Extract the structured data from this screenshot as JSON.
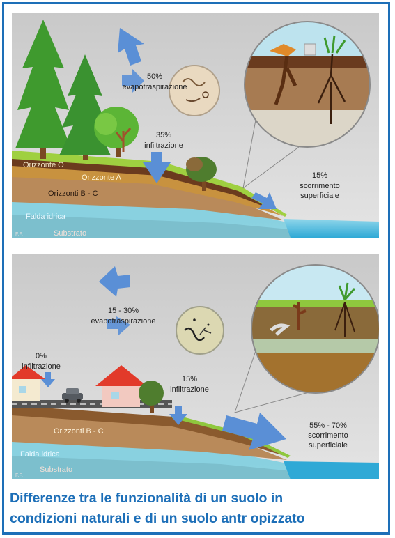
{
  "natural_panel": {
    "evapotranspiration_pct": "50%",
    "evapotranspiration_label": "evapotraspirazione",
    "infiltration_pct": "35%",
    "infiltration_label": "infiltrazione",
    "runoff_pct": "15%",
    "runoff_label_1": "scorrimento",
    "runoff_label_2": "superficiale",
    "horizon_o": "Orizzonte O",
    "horizon_a": "Orizzonte A",
    "horizons_bc": "Orizzonti B - C",
    "water_table": "Falda idrica",
    "substrate": "Substrato",
    "signature": "F.F."
  },
  "anthropized_panel": {
    "evapotranspiration_pct": "15 - 30%",
    "evapotranspiration_label": "evapotraspirazione",
    "infiltration_road_pct": "0%",
    "infiltration_road_label": "infiltrazione",
    "infiltration_pct": "15%",
    "infiltration_label": "infiltrazione",
    "runoff_pct": "55% - 70%",
    "runoff_label_1": "scorrimento",
    "runoff_label_2": "superficiale",
    "horizons_bc": "Orizzonti B - C",
    "water_table": "Falda idrica",
    "substrate": "Substrato",
    "signature": "F.F."
  },
  "caption": {
    "line1": "Differenze  tra le funzionalità di un suolo in",
    "line2": "condizioni naturali e di un suolo antr  opizzato"
  },
  "colors": {
    "border": "#1d6fb8",
    "caption": "#1d6fb8",
    "arrow": "#5a8fd6"
  }
}
